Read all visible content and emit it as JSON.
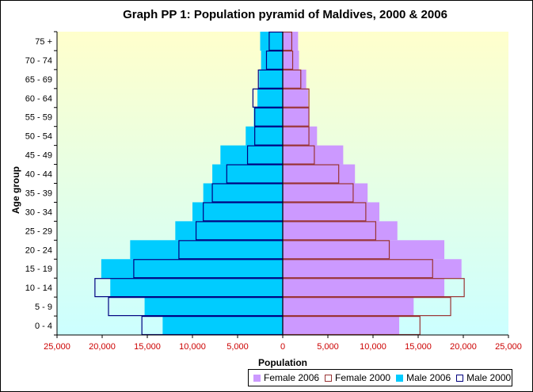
{
  "chart_data": {
    "type": "bar",
    "orientation": "horizontal",
    "title": "Graph PP 1: Population pyramid of Maldives, 2000 & 2006",
    "xlabel": "Population",
    "ylabel": "Age group",
    "xlim": [
      -25000,
      25000
    ],
    "x_ticks": [
      "25,000",
      "20,000",
      "15,000",
      "10,000",
      "5,000",
      "0",
      "5,000",
      "10,000",
      "15,000",
      "20,000",
      "25,000"
    ],
    "categories": [
      "0 - 4",
      "5 - 9",
      "10 - 14",
      "15 - 19",
      "20 - 24",
      "25 - 29",
      "30 - 34",
      "35 - 39",
      "40 - 44",
      "45 - 49",
      "50 - 54",
      "55 - 59",
      "60 - 64",
      "65 - 69",
      "70 - 74",
      "75 +"
    ],
    "series": [
      {
        "name": "Female 2006",
        "style": "filled",
        "side": "right",
        "color": "#CC99FF",
        "values": [
          12900,
          14500,
          17900,
          19800,
          17900,
          12700,
          10700,
          9400,
          8000,
          6700,
          3800,
          2900,
          2800,
          2600,
          1800,
          1700
        ]
      },
      {
        "name": "Female 2000",
        "style": "outline",
        "side": "right",
        "color": "#993333",
        "values": [
          15200,
          18600,
          20100,
          16600,
          11800,
          10300,
          9200,
          7800,
          6200,
          3500,
          2900,
          2900,
          2900,
          2000,
          1100,
          1000
        ]
      },
      {
        "name": "Male 2006",
        "style": "filled",
        "side": "left",
        "color": "#00CCFF",
        "values": [
          13300,
          15300,
          19100,
          20100,
          16900,
          11900,
          10000,
          8800,
          7800,
          6900,
          4100,
          3200,
          2800,
          2600,
          2400,
          2500
        ]
      },
      {
        "name": "Male 2000",
        "style": "outline",
        "side": "left",
        "color": "#000080",
        "values": [
          15600,
          19300,
          20800,
          16500,
          11500,
          9600,
          8800,
          7800,
          6200,
          3900,
          3100,
          3100,
          3300,
          2700,
          1800,
          1500
        ]
      }
    ],
    "grid": false,
    "legend_position": "bottom-right",
    "plot_background": {
      "top": "#FFFFCC",
      "bottom": "#CCFFFF"
    },
    "tick_label_color": "#CC0000"
  }
}
